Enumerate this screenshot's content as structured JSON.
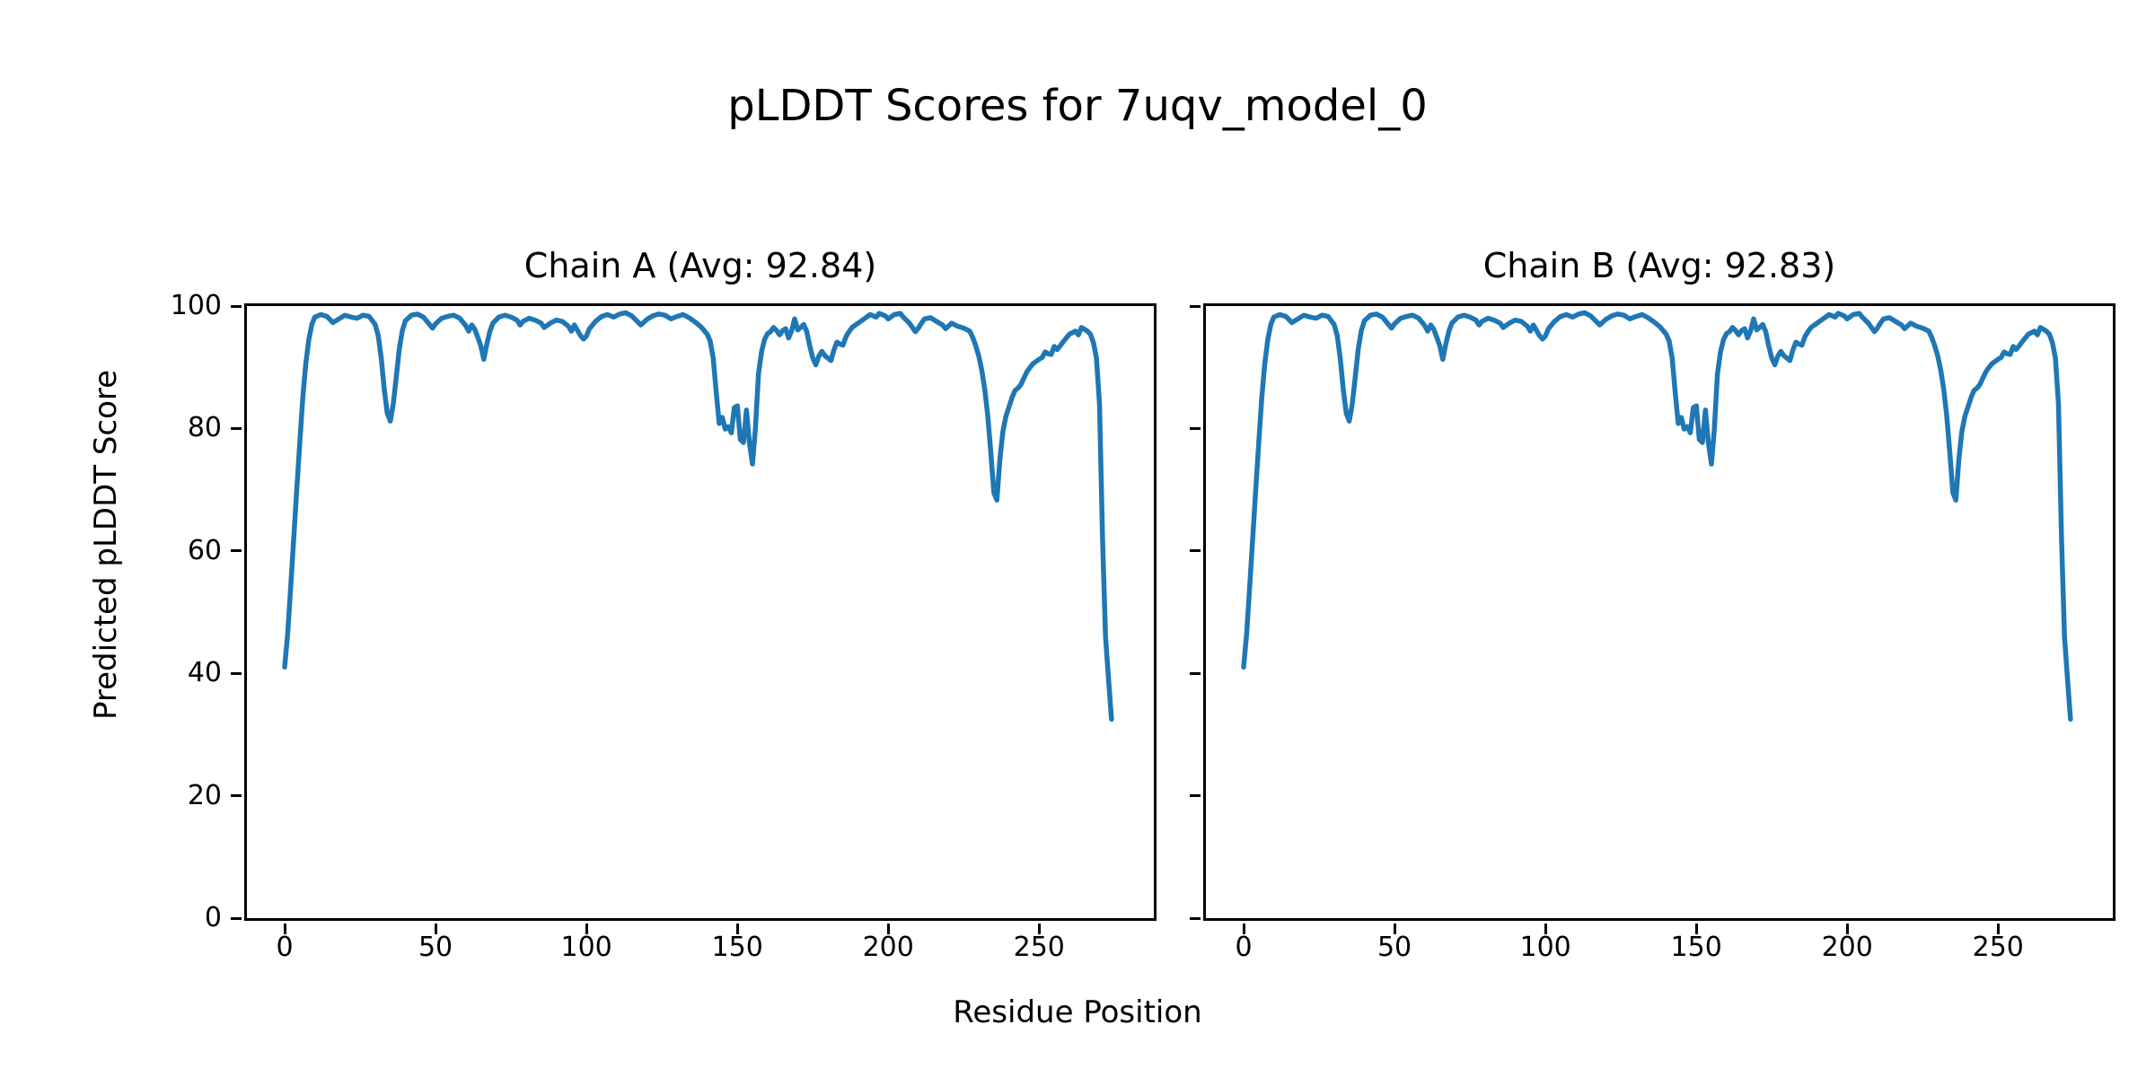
{
  "figure": {
    "title": "pLDDT Scores for 7uqv_model_0",
    "xlabel": "Residue Position",
    "ylabel": "Predicted pLDDT Score",
    "background_color": "#ffffff",
    "text_color": "#000000"
  },
  "chart_data": [
    {
      "type": "line",
      "title": "Chain A (Avg: 92.84)",
      "chain": "A",
      "avg_plddt": 92.84,
      "line_color": "#1f77b4",
      "xlim": [
        -12.5,
        288.0
      ],
      "ylim": [
        0,
        100
      ],
      "xticks": [
        0,
        50,
        100,
        150,
        200,
        250
      ],
      "yticks": [
        0,
        20,
        40,
        60,
        80,
        100
      ],
      "show_ytick_labels": true,
      "grid": false,
      "x": [
        0,
        1,
        2,
        3,
        4,
        5,
        6,
        7,
        8,
        9,
        10,
        12,
        14,
        16,
        18,
        20,
        22,
        24,
        26,
        28,
        30,
        31,
        32,
        33,
        34,
        35,
        36,
        37,
        38,
        39,
        40,
        42,
        44,
        46,
        48,
        49,
        50,
        52,
        54,
        56,
        58,
        60,
        61,
        62,
        63,
        64,
        65,
        66,
        67,
        68,
        69,
        71,
        73,
        75,
        77,
        78,
        79,
        81,
        83,
        85,
        86,
        88,
        90,
        92,
        94,
        95,
        96,
        98,
        99,
        100,
        101,
        103,
        105,
        107,
        109,
        111,
        113,
        115,
        117,
        118,
        120,
        122,
        124,
        126,
        128,
        130,
        132,
        134,
        136,
        138,
        140,
        141,
        142,
        143,
        144,
        145,
        146,
        147,
        148,
        149,
        150,
        151,
        152,
        153,
        154,
        155,
        156,
        157,
        158,
        159,
        160,
        161,
        162,
        163,
        164,
        165,
        166,
        167,
        168,
        169,
        170,
        171,
        172,
        173,
        174,
        175,
        176,
        177,
        178,
        179,
        180,
        181,
        182,
        183,
        184,
        185,
        186,
        187,
        188,
        190,
        192,
        194,
        196,
        197,
        199,
        200,
        202,
        204,
        205,
        207,
        209,
        210,
        211,
        212,
        214,
        216,
        218,
        219,
        221,
        223,
        225,
        227,
        228,
        229,
        230,
        231,
        232,
        233,
        234,
        235,
        236,
        237,
        238,
        239,
        240,
        241,
        242,
        243,
        244,
        245,
        246,
        247,
        248,
        250,
        251,
        252,
        253,
        254,
        255,
        256,
        257,
        258,
        260,
        262,
        263,
        264,
        265,
        266,
        267,
        268,
        269,
        270,
        271,
        272,
        273,
        274
      ],
      "y": [
        41,
        46.5,
        54,
        62,
        70,
        77.5,
        85,
        90.5,
        94.5,
        97,
        98.2,
        98.6,
        98.3,
        97.3,
        97.9,
        98.5,
        98.2,
        98,
        98.5,
        98.3,
        97,
        95.2,
        91.5,
        86.5,
        82.5,
        81.2,
        84,
        88.5,
        93,
        96,
        97.6,
        98.5,
        98.7,
        98.2,
        97,
        96.4,
        97.1,
        98,
        98.3,
        98.5,
        98,
        96.8,
        95.9,
        96.9,
        96.2,
        94.9,
        93.5,
        91.3,
        93.8,
        95.9,
        97.2,
        98.2,
        98.5,
        98.2,
        97.7,
        96.9,
        97.5,
        98,
        97.7,
        97.2,
        96.5,
        97.2,
        97.7,
        97.5,
        96.7,
        95.9,
        96.9,
        95.2,
        94.6,
        95.1,
        96.3,
        97.5,
        98.3,
        98.6,
        98.2,
        98.7,
        98.9,
        98.4,
        97.4,
        96.9,
        97.8,
        98.4,
        98.7,
        98.5,
        97.9,
        98.3,
        98.6,
        98.1,
        97.4,
        96.6,
        95.4,
        94.3,
        91.5,
        86,
        80.8,
        81.8,
        79.9,
        80.3,
        79.3,
        83.4,
        83.7,
        78.2,
        77.7,
        83,
        77.7,
        74.2,
        80,
        88.9,
        92.5,
        94.5,
        95.5,
        95.8,
        96.5,
        96,
        95.3,
        96,
        96.3,
        94.8,
        96,
        97.9,
        96.1,
        96.5,
        97,
        95.8,
        93.5,
        91.5,
        90.4,
        91.8,
        92.6,
        91.9,
        91.5,
        91.1,
        92.8,
        94.1,
        93.8,
        93.6,
        95,
        95.8,
        96.5,
        97.2,
        97.9,
        98.6,
        98.2,
        98.8,
        98.4,
        97.9,
        98.6,
        98.8,
        98.2,
        97.2,
        95.8,
        96.4,
        97.2,
        97.9,
        98.1,
        97.5,
        96.9,
        96.3,
        97.2,
        96.7,
        96.4,
        95.9,
        94.9,
        93.5,
        91.8,
        89.5,
        86.3,
        82,
        76,
        69.5,
        68.3,
        75,
        79.5,
        82,
        83.5,
        85,
        86.2,
        86.6,
        87.2,
        88.3,
        89.3,
        90,
        90.6,
        91.3,
        91.6,
        92.5,
        92.2,
        92.1,
        93.4,
        92.9,
        93.5,
        94.2,
        95.4,
        95.9,
        95.3,
        96.5,
        96.2,
        95.9,
        95.4,
        94,
        91.5,
        84,
        62,
        46,
        39,
        32.5
      ]
    },
    {
      "type": "line",
      "title": "Chain B (Avg: 92.83)",
      "chain": "B",
      "avg_plddt": 92.83,
      "line_color": "#1f77b4",
      "xlim": [
        -12.5,
        288.0
      ],
      "ylim": [
        0,
        100
      ],
      "xticks": [
        0,
        50,
        100,
        150,
        200,
        250
      ],
      "yticks": [
        0,
        20,
        40,
        60,
        80,
        100
      ],
      "show_ytick_labels": false,
      "grid": false,
      "x": [
        0,
        1,
        2,
        3,
        4,
        5,
        6,
        7,
        8,
        9,
        10,
        12,
        14,
        16,
        18,
        20,
        22,
        24,
        26,
        28,
        30,
        31,
        32,
        33,
        34,
        35,
        36,
        37,
        38,
        39,
        40,
        42,
        44,
        46,
        48,
        49,
        50,
        52,
        54,
        56,
        58,
        60,
        61,
        62,
        63,
        64,
        65,
        66,
        67,
        68,
        69,
        71,
        73,
        75,
        77,
        78,
        79,
        81,
        83,
        85,
        86,
        88,
        90,
        92,
        94,
        95,
        96,
        98,
        99,
        100,
        101,
        103,
        105,
        107,
        109,
        111,
        113,
        115,
        117,
        118,
        120,
        122,
        124,
        126,
        128,
        130,
        132,
        134,
        136,
        138,
        140,
        141,
        142,
        143,
        144,
        145,
        146,
        147,
        148,
        149,
        150,
        151,
        152,
        153,
        154,
        155,
        156,
        157,
        158,
        159,
        160,
        161,
        162,
        163,
        164,
        165,
        166,
        167,
        168,
        169,
        170,
        171,
        172,
        173,
        174,
        175,
        176,
        177,
        178,
        179,
        180,
        181,
        182,
        183,
        184,
        185,
        186,
        187,
        188,
        190,
        192,
        194,
        196,
        197,
        199,
        200,
        202,
        204,
        205,
        207,
        209,
        210,
        211,
        212,
        214,
        216,
        218,
        219,
        221,
        223,
        225,
        227,
        228,
        229,
        230,
        231,
        232,
        233,
        234,
        235,
        236,
        237,
        238,
        239,
        240,
        241,
        242,
        243,
        244,
        245,
        246,
        247,
        248,
        250,
        251,
        252,
        253,
        254,
        255,
        256,
        257,
        258,
        260,
        262,
        263,
        264,
        265,
        266,
        267,
        268,
        269,
        270,
        271,
        272,
        273,
        274
      ],
      "y": [
        41,
        46.5,
        54,
        62,
        70,
        77.5,
        85,
        90.5,
        94.5,
        97,
        98.2,
        98.6,
        98.3,
        97.3,
        97.9,
        98.5,
        98.2,
        98,
        98.5,
        98.3,
        97,
        95.2,
        91.5,
        86.5,
        82.5,
        81.2,
        84,
        88.5,
        93,
        96,
        97.6,
        98.5,
        98.7,
        98.2,
        97,
        96.4,
        97.1,
        98,
        98.3,
        98.5,
        98,
        96.8,
        95.9,
        96.9,
        96.2,
        94.9,
        93.5,
        91.3,
        93.8,
        95.9,
        97.2,
        98.2,
        98.5,
        98.2,
        97.7,
        96.9,
        97.5,
        98,
        97.7,
        97.2,
        96.5,
        97.2,
        97.7,
        97.5,
        96.7,
        95.9,
        96.9,
        95.2,
        94.6,
        95.1,
        96.3,
        97.5,
        98.3,
        98.6,
        98.2,
        98.7,
        98.9,
        98.4,
        97.4,
        96.9,
        97.8,
        98.4,
        98.7,
        98.5,
        97.9,
        98.3,
        98.6,
        98.1,
        97.4,
        96.6,
        95.4,
        94.3,
        91.5,
        86,
        80.8,
        81.8,
        79.9,
        80.3,
        79.3,
        83.4,
        83.7,
        78.2,
        77.7,
        83,
        77.7,
        74.2,
        80,
        88.9,
        92.5,
        94.5,
        95.5,
        95.8,
        96.5,
        96,
        95.3,
        96,
        96.3,
        94.8,
        96,
        97.9,
        96.1,
        96.5,
        97,
        95.8,
        93.5,
        91.5,
        90.4,
        91.8,
        92.6,
        91.9,
        91.5,
        91.1,
        92.8,
        94.1,
        93.8,
        93.6,
        95,
        95.8,
        96.5,
        97.2,
        97.9,
        98.6,
        98.2,
        98.8,
        98.4,
        97.9,
        98.6,
        98.8,
        98.2,
        97.2,
        95.8,
        96.4,
        97.2,
        97.9,
        98.1,
        97.5,
        96.9,
        96.3,
        97.2,
        96.7,
        96.4,
        95.9,
        94.9,
        93.5,
        91.8,
        89.5,
        86.3,
        82,
        76,
        69.5,
        68.3,
        75,
        79.5,
        82,
        83.5,
        85,
        86.2,
        86.6,
        87.2,
        88.3,
        89.3,
        90,
        90.6,
        91.3,
        91.6,
        92.5,
        92.2,
        92.1,
        93.4,
        92.9,
        93.5,
        94.2,
        95.4,
        95.9,
        95.3,
        96.5,
        96.2,
        95.9,
        95.4,
        94,
        91.5,
        84,
        62,
        46,
        39,
        32.5
      ]
    }
  ]
}
